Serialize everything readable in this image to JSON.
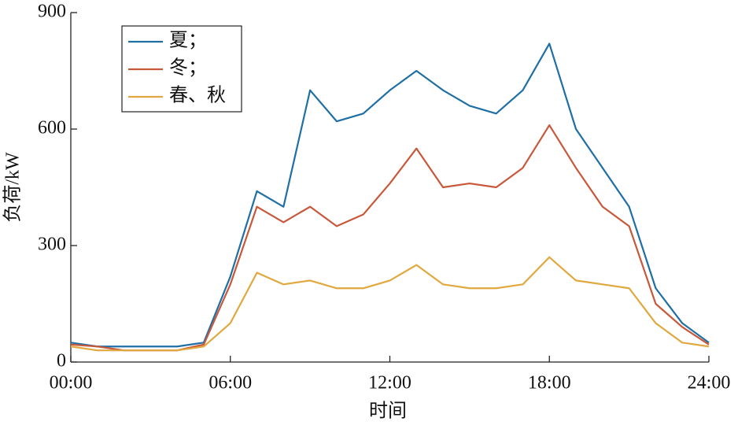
{
  "chart_data": {
    "type": "line",
    "xlabel": "时间",
    "ylabel": "负荷/kW",
    "x": [
      0,
      1,
      2,
      3,
      4,
      5,
      6,
      7,
      8,
      9,
      10,
      11,
      12,
      13,
      14,
      15,
      16,
      17,
      18,
      19,
      20,
      21,
      22,
      23,
      24
    ],
    "series": [
      {
        "name": "夏；",
        "color": "#1f6fa5",
        "values": [
          50,
          40,
          40,
          40,
          40,
          50,
          220,
          440,
          400,
          700,
          620,
          640,
          700,
          750,
          700,
          660,
          640,
          700,
          820,
          600,
          500,
          400,
          190,
          100,
          50
        ]
      },
      {
        "name": "冬；",
        "color": "#c8583a",
        "values": [
          45,
          40,
          30,
          30,
          30,
          45,
          200,
          400,
          360,
          400,
          350,
          380,
          460,
          550,
          450,
          460,
          450,
          500,
          610,
          500,
          400,
          350,
          150,
          90,
          45
        ]
      },
      {
        "name": "春、秋",
        "color": "#e0a83e",
        "values": [
          40,
          30,
          30,
          30,
          30,
          40,
          100,
          230,
          200,
          210,
          190,
          190,
          210,
          250,
          200,
          190,
          190,
          200,
          270,
          210,
          200,
          190,
          100,
          50,
          40
        ]
      }
    ],
    "xlim": [
      0,
      24
    ],
    "xticks": [
      {
        "value": 0,
        "label": "00:00"
      },
      {
        "value": 6,
        "label": "06:00"
      },
      {
        "value": 12,
        "label": "12:00"
      },
      {
        "value": 18,
        "label": "18:00"
      },
      {
        "value": 24,
        "label": "24:00"
      }
    ],
    "ylim": [
      0,
      900
    ],
    "yticks": [
      0,
      300,
      600,
      900
    ],
    "legend": "upper left"
  }
}
